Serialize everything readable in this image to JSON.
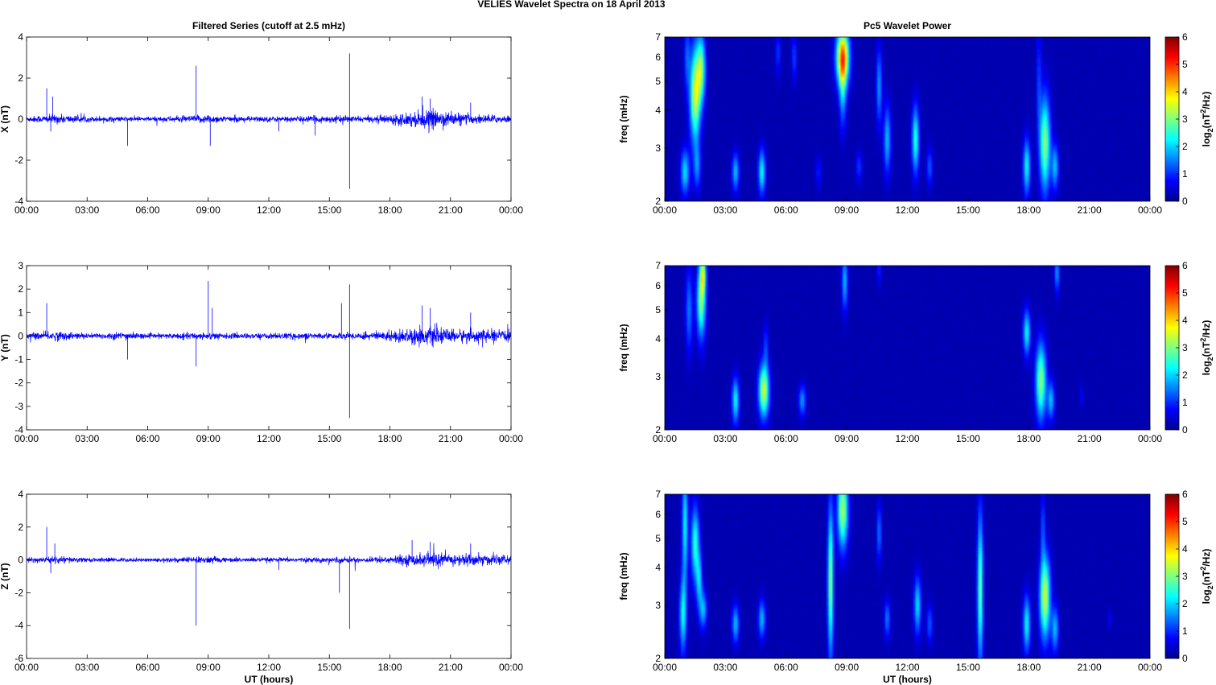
{
  "title": "VELIES Wavelet Spectra on 18 April     2013",
  "chart_data": [
    {
      "type": "line",
      "panel": "X",
      "title": "Filtered Series (cutoff at 2.5 mHz)",
      "ylabel": "X (nT)",
      "xlabel": "",
      "ylim": [
        -4,
        4
      ],
      "yticks": [
        -4,
        -2,
        0,
        2,
        4
      ],
      "xlim": [
        0,
        24
      ],
      "xticks": [
        "00:00",
        "03:00",
        "06:00",
        "09:00",
        "12:00",
        "15:00",
        "18:00",
        "21:00",
        "00:00"
      ],
      "color": "#0000ff",
      "noise_profile": [
        [
          0,
          0.12
        ],
        [
          1.5,
          0.2
        ],
        [
          3,
          0.12
        ],
        [
          6,
          0.1
        ],
        [
          8,
          0.14
        ],
        [
          9,
          0.2
        ],
        [
          10,
          0.12
        ],
        [
          13,
          0.12
        ],
        [
          15,
          0.15
        ],
        [
          17,
          0.12
        ],
        [
          18,
          0.2
        ],
        [
          19,
          0.3
        ],
        [
          20,
          0.4
        ],
        [
          21,
          0.3
        ],
        [
          22,
          0.2
        ],
        [
          24,
          0.15
        ]
      ],
      "spikes": [
        [
          1.0,
          1.5
        ],
        [
          1.3,
          1.1
        ],
        [
          1.2,
          -0.6
        ],
        [
          5.0,
          -1.3
        ],
        [
          8.4,
          2.6
        ],
        [
          9.1,
          -1.3
        ],
        [
          12.5,
          -0.6
        ],
        [
          16.0,
          3.2
        ],
        [
          16.0,
          -3.4
        ],
        [
          14.3,
          -0.8
        ],
        [
          19.6,
          1.1
        ],
        [
          20.0,
          1.0
        ],
        [
          22.0,
          0.8
        ]
      ]
    },
    {
      "type": "line",
      "panel": "Y",
      "title": "",
      "ylabel": "Y (nT)",
      "xlabel": "",
      "ylim": [
        -4,
        3
      ],
      "yticks": [
        -4,
        -3,
        -2,
        -1,
        0,
        1,
        2,
        3
      ],
      "xlim": [
        0,
        24
      ],
      "xticks": [
        "00:00",
        "03:00",
        "06:00",
        "09:00",
        "12:00",
        "15:00",
        "18:00",
        "21:00",
        "00:00"
      ],
      "color": "#0000ff",
      "noise_profile": [
        [
          0,
          0.1
        ],
        [
          1.5,
          0.18
        ],
        [
          3,
          0.1
        ],
        [
          5,
          0.15
        ],
        [
          6,
          0.08
        ],
        [
          9,
          0.14
        ],
        [
          10,
          0.1
        ],
        [
          14,
          0.12
        ],
        [
          15,
          0.1
        ],
        [
          17,
          0.15
        ],
        [
          18,
          0.2
        ],
        [
          19,
          0.3
        ],
        [
          20,
          0.35
        ],
        [
          21,
          0.25
        ],
        [
          22,
          0.25
        ],
        [
          24,
          0.2
        ]
      ],
      "spikes": [
        [
          1.0,
          1.4
        ],
        [
          5.0,
          -1.0
        ],
        [
          8.4,
          -1.3
        ],
        [
          9.0,
          2.35
        ],
        [
          9.2,
          1.2
        ],
        [
          15.6,
          1.4
        ],
        [
          16.0,
          2.2
        ],
        [
          16.0,
          -3.5
        ],
        [
          19.6,
          1.3
        ],
        [
          20.0,
          1.2
        ],
        [
          22.0,
          1.0
        ]
      ]
    },
    {
      "type": "line",
      "panel": "Z",
      "title": "",
      "ylabel": "Z (nT)",
      "xlabel": "UT (hours)",
      "ylim": [
        -6,
        4
      ],
      "yticks": [
        -6,
        -4,
        -2,
        0,
        2,
        4
      ],
      "xlim": [
        0,
        24
      ],
      "xticks": [
        "00:00",
        "03:00",
        "06:00",
        "09:00",
        "12:00",
        "15:00",
        "18:00",
        "21:00",
        "00:00"
      ],
      "color": "#0000ff",
      "noise_profile": [
        [
          0,
          0.12
        ],
        [
          1.5,
          0.2
        ],
        [
          3,
          0.12
        ],
        [
          6,
          0.1
        ],
        [
          8,
          0.15
        ],
        [
          9,
          0.2
        ],
        [
          10,
          0.12
        ],
        [
          14,
          0.12
        ],
        [
          15,
          0.15
        ],
        [
          17,
          0.15
        ],
        [
          18,
          0.2
        ],
        [
          19,
          0.3
        ],
        [
          20,
          0.4
        ],
        [
          21,
          0.3
        ],
        [
          22,
          0.35
        ],
        [
          24,
          0.2
        ]
      ],
      "spikes": [
        [
          1.0,
          2.0
        ],
        [
          1.4,
          1.0
        ],
        [
          1.2,
          -0.8
        ],
        [
          8.4,
          -4.0
        ],
        [
          12.5,
          -0.6
        ],
        [
          15.5,
          -2.0
        ],
        [
          16.0,
          -4.2
        ],
        [
          19.1,
          1.2
        ],
        [
          20.0,
          1.1
        ],
        [
          22.0,
          1.0
        ]
      ]
    },
    {
      "type": "heatmap",
      "panel": "X",
      "title": "Pc5 Wavelet Power",
      "ylabel": "freq (mHz)",
      "xlabel": "",
      "yscale": "log",
      "ylim": [
        2,
        7
      ],
      "yticks": [
        2,
        3,
        4,
        5,
        6,
        7
      ],
      "xlim": [
        0,
        24
      ],
      "xticks": [
        "00:00",
        "03:00",
        "06:00",
        "09:00",
        "12:00",
        "15:00",
        "18:00",
        "21:00",
        "00:00"
      ],
      "colorbar": {
        "label": "log2(nT^2/Hz)",
        "range": [
          0,
          6
        ],
        "ticks": [
          0,
          1,
          2,
          3,
          4,
          5,
          6
        ],
        "colormap": "jet"
      },
      "blobs": [
        [
          1.0,
          2.5,
          0.15,
          0.12,
          1.8
        ],
        [
          1.1,
          6.0,
          0.1,
          0.18,
          1.0
        ],
        [
          1.5,
          4.5,
          0.18,
          0.25,
          3.2
        ],
        [
          1.8,
          5.5,
          0.15,
          0.18,
          2.5
        ],
        [
          1.6,
          2.6,
          0.12,
          0.12,
          1.2
        ],
        [
          3.5,
          2.5,
          0.12,
          0.1,
          1.6
        ],
        [
          4.8,
          2.5,
          0.12,
          0.12,
          2.0
        ],
        [
          5.6,
          6.2,
          0.08,
          0.12,
          0.8
        ],
        [
          6.4,
          6.0,
          0.08,
          0.12,
          0.9
        ],
        [
          7.6,
          2.5,
          0.1,
          0.08,
          0.6
        ],
        [
          8.8,
          6.0,
          0.22,
          0.15,
          4.3
        ],
        [
          8.8,
          4.6,
          0.12,
          0.2,
          1.4
        ],
        [
          9.6,
          2.6,
          0.1,
          0.08,
          0.8
        ],
        [
          10.6,
          4.8,
          0.1,
          0.2,
          1.4
        ],
        [
          11.0,
          3.2,
          0.12,
          0.18,
          1.6
        ],
        [
          12.4,
          3.2,
          0.12,
          0.18,
          2.2
        ],
        [
          13.1,
          2.6,
          0.1,
          0.1,
          1.0
        ],
        [
          17.9,
          2.6,
          0.12,
          0.15,
          2.0
        ],
        [
          18.8,
          3.1,
          0.18,
          0.25,
          2.8
        ],
        [
          19.3,
          2.6,
          0.12,
          0.12,
          1.6
        ],
        [
          18.5,
          5.0,
          0.08,
          0.3,
          0.8
        ]
      ]
    },
    {
      "type": "heatmap",
      "panel": "Y",
      "title": "",
      "ylabel": "freq (mHz)",
      "xlabel": "",
      "yscale": "log",
      "ylim": [
        2,
        7
      ],
      "yticks": [
        2,
        3,
        4,
        5,
        6,
        7
      ],
      "xlim": [
        0,
        24
      ],
      "xticks": [
        "00:00",
        "03:00",
        "06:00",
        "09:00",
        "12:00",
        "15:00",
        "18:00",
        "21:00",
        "00:00"
      ],
      "colorbar": {
        "label": "log2(nT^2/Hz)",
        "range": [
          0,
          6
        ],
        "ticks": [
          0,
          1,
          2,
          3,
          4,
          5,
          6
        ],
        "colormap": "jet"
      },
      "blobs": [
        [
          1.2,
          5.0,
          0.12,
          0.22,
          1.2
        ],
        [
          1.8,
          5.4,
          0.15,
          0.2,
          2.8
        ],
        [
          1.9,
          6.6,
          0.1,
          0.1,
          2.2
        ],
        [
          3.5,
          2.5,
          0.12,
          0.12,
          2.0
        ],
        [
          4.9,
          2.7,
          0.18,
          0.14,
          3.2
        ],
        [
          5.0,
          3.8,
          0.08,
          0.12,
          0.8
        ],
        [
          6.8,
          2.5,
          0.12,
          0.08,
          1.4
        ],
        [
          8.9,
          6.2,
          0.1,
          0.15,
          1.6
        ],
        [
          10.6,
          6.8,
          0.06,
          0.08,
          0.8
        ],
        [
          17.9,
          4.2,
          0.12,
          0.12,
          2.0
        ],
        [
          18.6,
          2.9,
          0.18,
          0.2,
          2.8
        ],
        [
          19.1,
          2.5,
          0.12,
          0.1,
          1.6
        ],
        [
          19.4,
          6.6,
          0.08,
          0.1,
          1.4
        ],
        [
          20.6,
          2.6,
          0.06,
          0.06,
          0.5
        ]
      ]
    },
    {
      "type": "heatmap",
      "panel": "Z",
      "title": "",
      "ylabel": "freq (mHz)",
      "xlabel": "UT (hours)",
      "yscale": "log",
      "ylim": [
        2,
        7
      ],
      "yticks": [
        2,
        3,
        4,
        5,
        6,
        7
      ],
      "xlim": [
        0,
        24
      ],
      "xticks": [
        "00:00",
        "03:00",
        "06:00",
        "09:00",
        "12:00",
        "15:00",
        "18:00",
        "21:00",
        "00:00"
      ],
      "colorbar": {
        "label": "log2(nT^2/Hz)",
        "range": [
          0,
          6
        ],
        "ticks": [
          0,
          1,
          2,
          3,
          4,
          5,
          6
        ],
        "colormap": "jet"
      },
      "blobs": [
        [
          0.9,
          2.8,
          0.12,
          0.2,
          2.0
        ],
        [
          1.0,
          5.5,
          0.1,
          0.3,
          2.0
        ],
        [
          1.5,
          4.8,
          0.14,
          0.2,
          2.2
        ],
        [
          1.7,
          3.6,
          0.1,
          0.15,
          1.6
        ],
        [
          1.9,
          2.9,
          0.12,
          0.1,
          1.6
        ],
        [
          3.5,
          2.6,
          0.12,
          0.1,
          1.6
        ],
        [
          4.8,
          2.7,
          0.12,
          0.1,
          1.6
        ],
        [
          8.2,
          3.6,
          0.1,
          0.4,
          2.8
        ],
        [
          8.8,
          6.2,
          0.18,
          0.2,
          3.0
        ],
        [
          10.6,
          5.2,
          0.08,
          0.15,
          1.2
        ],
        [
          11.0,
          2.7,
          0.1,
          0.1,
          1.2
        ],
        [
          12.5,
          3.0,
          0.12,
          0.15,
          1.8
        ],
        [
          13.1,
          2.6,
          0.1,
          0.1,
          1.0
        ],
        [
          15.6,
          3.4,
          0.1,
          0.4,
          2.6
        ],
        [
          17.9,
          2.6,
          0.12,
          0.15,
          2.0
        ],
        [
          18.8,
          3.2,
          0.18,
          0.22,
          3.2
        ],
        [
          19.3,
          2.5,
          0.12,
          0.12,
          1.6
        ],
        [
          18.7,
          5.5,
          0.06,
          0.2,
          1.0
        ],
        [
          22.0,
          2.7,
          0.06,
          0.05,
          0.5
        ]
      ]
    }
  ]
}
